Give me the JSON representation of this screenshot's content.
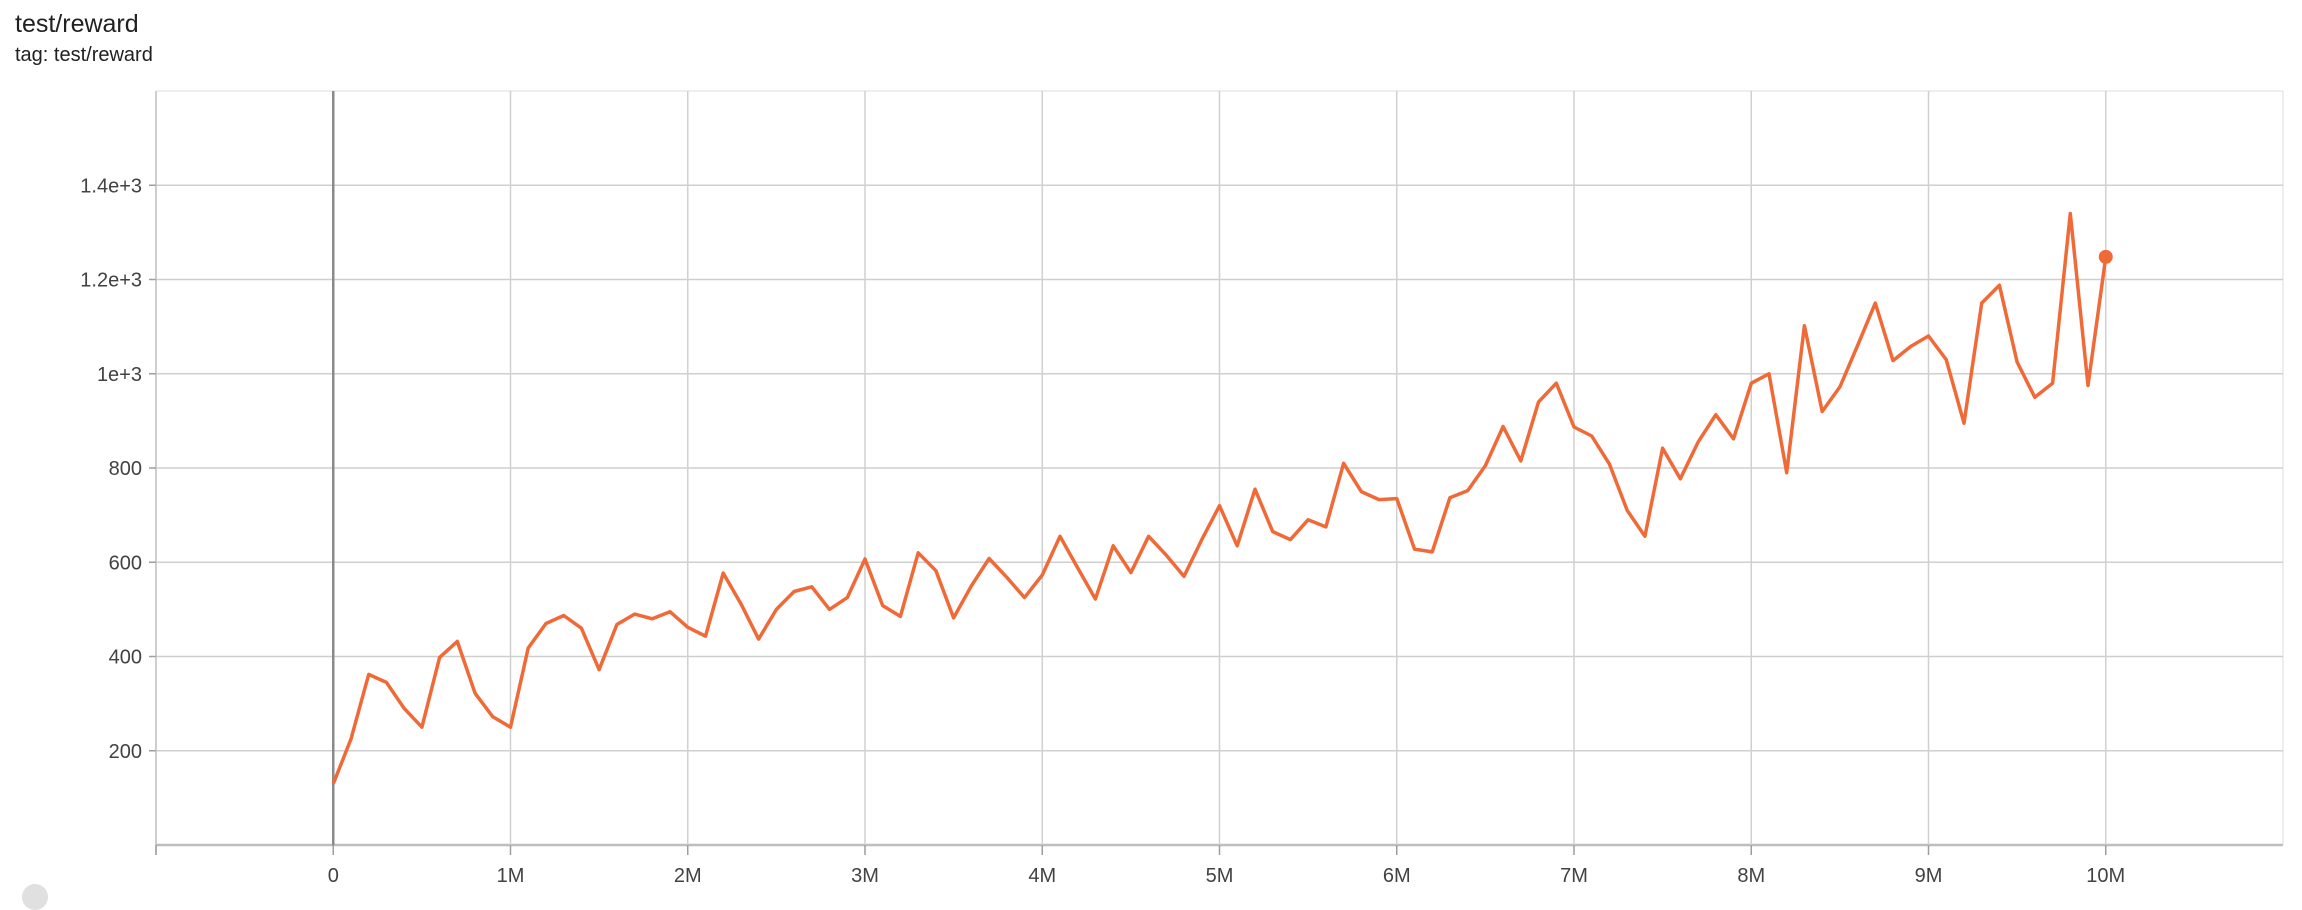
{
  "card": {
    "title": "test/reward",
    "tag_line": "tag: test/reward"
  },
  "chart_data": {
    "type": "line",
    "title": "test/reward",
    "xlabel": "",
    "ylabel": "",
    "xlim": [
      -1000000,
      11000000
    ],
    "ylim": [
      0,
      1600
    ],
    "grid": true,
    "x_ticks": [
      {
        "v": 0,
        "label": "0"
      },
      {
        "v": 1000000,
        "label": "1M"
      },
      {
        "v": 2000000,
        "label": "2M"
      },
      {
        "v": 3000000,
        "label": "3M"
      },
      {
        "v": 4000000,
        "label": "4M"
      },
      {
        "v": 5000000,
        "label": "5M"
      },
      {
        "v": 6000000,
        "label": "6M"
      },
      {
        "v": 7000000,
        "label": "7M"
      },
      {
        "v": 8000000,
        "label": "8M"
      },
      {
        "v": 9000000,
        "label": "9M"
      },
      {
        "v": 10000000,
        "label": "10M"
      }
    ],
    "y_ticks": [
      {
        "v": 200,
        "label": "200"
      },
      {
        "v": 400,
        "label": "400"
      },
      {
        "v": 600,
        "label": "600"
      },
      {
        "v": 800,
        "label": "800"
      },
      {
        "v": 1000,
        "label": "1e+3"
      },
      {
        "v": 1200,
        "label": "1.2e+3"
      },
      {
        "v": 1400,
        "label": "1.4e+3"
      }
    ],
    "series": [
      {
        "color": "#f06a38",
        "x_step": 100000,
        "values": [
          130,
          225,
          362,
          345,
          290,
          250,
          398,
          432,
          322,
          272,
          250,
          418,
          470,
          487,
          460,
          372,
          468,
          490,
          480,
          495,
          462,
          443,
          577,
          512,
          437,
          500,
          538,
          548,
          500,
          525,
          607,
          508,
          485,
          620,
          582,
          482,
          550,
          608,
          568,
          525,
          573,
          655,
          588,
          522,
          635,
          578,
          655,
          615,
          570,
          648,
          720,
          635,
          755,
          665,
          648,
          690,
          675,
          810,
          750,
          733,
          735,
          628,
          622,
          737,
          752,
          805,
          888,
          815,
          940,
          980,
          887,
          868,
          808,
          710,
          655,
          842,
          777,
          855,
          913,
          862,
          980,
          1000,
          790,
          1102,
          920,
          972,
          1060,
          1150,
          1028,
          1058,
          1080,
          1030,
          895,
          1150,
          1188,
          1025,
          950,
          980,
          1340,
          975,
          1248
        ]
      }
    ]
  }
}
